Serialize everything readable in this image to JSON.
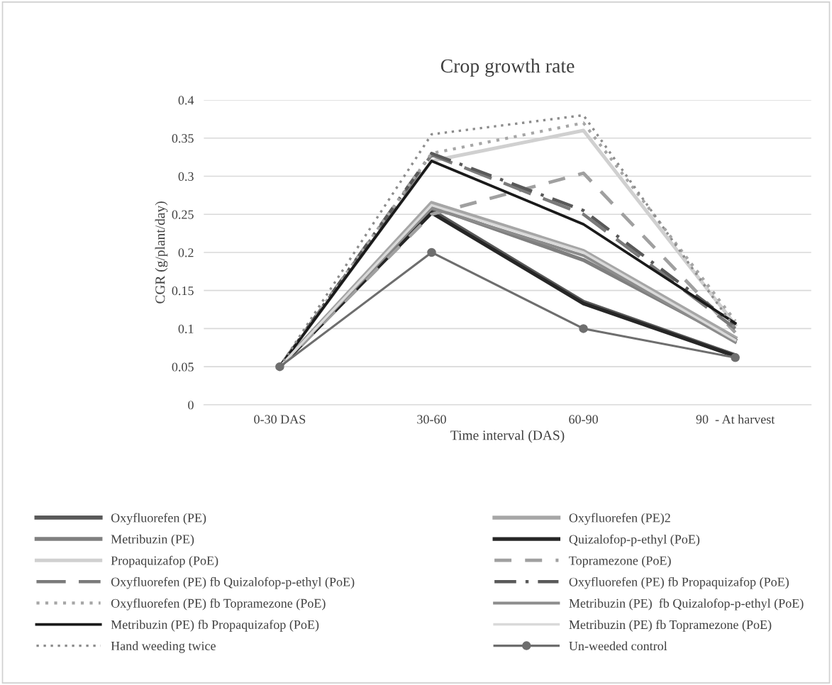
{
  "chart_data": {
    "type": "line",
    "title": "Crop growth rate",
    "xlabel": "Time interval (DAS)",
    "ylabel": "CGR (g/plant/day)",
    "categories": [
      "0-30 DAS",
      "30-60",
      "60-90",
      "90  - At harvest"
    ],
    "ylim": [
      0,
      0.4
    ],
    "yticks": [
      0,
      0.05,
      0.1,
      0.15,
      0.2,
      0.25,
      0.3,
      0.35,
      0.4
    ],
    "grid": "y",
    "legend": "bottom",
    "series": [
      {
        "name": "Oxyfluorefen (PE)",
        "color": "#595959",
        "values": [
          0.05,
          0.255,
          0.135,
          0.065
        ],
        "line_style": "solid"
      },
      {
        "name": "Oxyfluorefen (PE)2",
        "color": "#a6a6a6",
        "values": [
          0.05,
          0.265,
          0.202,
          0.088
        ],
        "line_style": "solid"
      },
      {
        "name": "Metribuzin (PE)",
        "color": "#7f7f7f",
        "values": [
          0.05,
          0.26,
          0.19,
          0.085
        ],
        "line_style": "solid"
      },
      {
        "name": "Quizalofop-p-ethyl (PoE)",
        "color": "#262626",
        "values": [
          0.05,
          0.252,
          0.133,
          0.064
        ],
        "line_style": "solid"
      },
      {
        "name": "Propaquizafop (PoE)",
        "color": "#d0d0d0",
        "values": [
          0.05,
          0.32,
          0.36,
          0.105
        ],
        "line_style": "solid"
      },
      {
        "name": "Topramezone (PoE)",
        "color": "#a0a0a0",
        "values": [
          0.05,
          0.25,
          0.304,
          0.095
        ],
        "line_style": "dashed"
      },
      {
        "name": "Oxyfluorefen (PE) fb Quizalofop-p-ethyl (PoE)",
        "color": "#7a7a7a",
        "values": [
          0.05,
          0.328,
          0.25,
          0.1
        ],
        "line_style": "longdash"
      },
      {
        "name": "Oxyfluorefen (PE) fb Propaquizafop (PoE)",
        "color": "#595959",
        "values": [
          0.05,
          0.33,
          0.255,
          0.105
        ],
        "line_style": "dashdot"
      },
      {
        "name": "Oxyfluorefen (PE) fb Topramezone (PoE)",
        "color": "#a6a6a6",
        "values": [
          0.05,
          0.33,
          0.37,
          0.11
        ],
        "line_style": "dotted"
      },
      {
        "name": "Metribuzin (PE)  fb Quizalofop-p-ethyl (PoE)",
        "color": "#8c8c8c",
        "values": [
          0.05,
          0.258,
          0.196,
          0.082
        ],
        "line_style": "solid"
      },
      {
        "name": "Metribuzin (PE) fb Propaquizafop (PoE)",
        "color": "#1a1a1a",
        "values": [
          0.05,
          0.32,
          0.237,
          0.107
        ],
        "line_style": "solid"
      },
      {
        "name": "Metribuzin (PE) fb Topramezone (PoE)",
        "color": "#d9d9d9",
        "values": [
          0.05,
          0.262,
          0.2,
          0.085
        ],
        "line_style": "solid"
      },
      {
        "name": "Hand weeding twice",
        "color": "#8c8c8c",
        "values": [
          0.05,
          0.355,
          0.38,
          0.1
        ],
        "line_style": "dotted"
      },
      {
        "name": "Un-weeded control",
        "color": "#6e6e6e",
        "values": [
          0.05,
          0.2,
          0.1,
          0.062
        ],
        "line_style": "solid",
        "marker": "circle"
      }
    ]
  }
}
